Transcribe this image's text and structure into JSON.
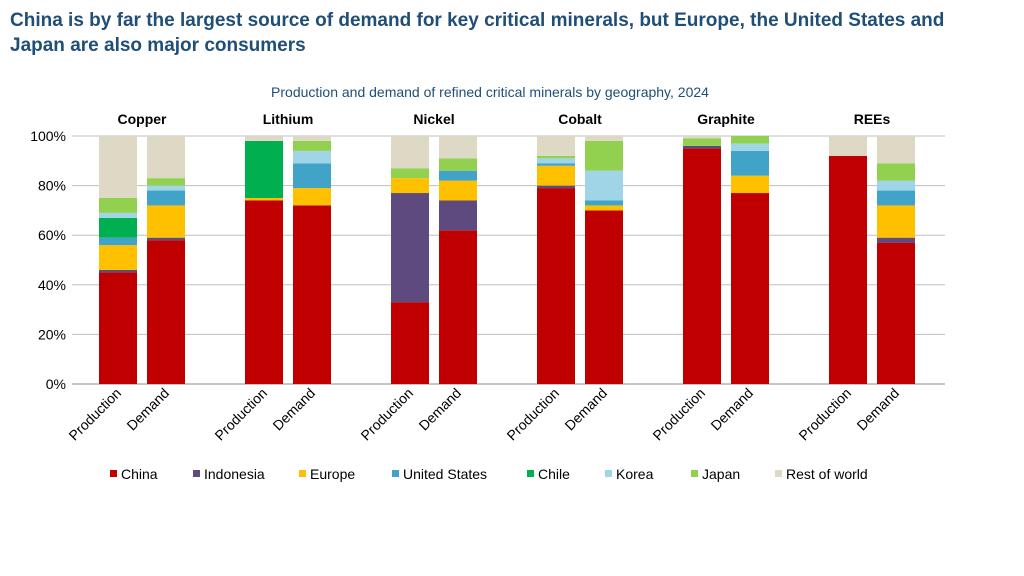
{
  "page": {
    "headline": "China is by far the largest source of demand for key critical minerals, but Europe, the United States and Japan are also major consumers"
  },
  "chart_data": {
    "type": "bar",
    "stacked": true,
    "title": "Production and demand of refined critical minerals by geography, 2024",
    "y_ticks": [
      "100%",
      "80%",
      "60%",
      "40%",
      "20%",
      "0%"
    ],
    "ylim": [
      0,
      100
    ],
    "grid": true,
    "legend_position": "bottom",
    "groups": [
      {
        "name": "Copper",
        "bars": [
          {
            "label": "Production",
            "values": [
              45,
              1,
              10,
              3,
              8,
              2,
              6,
              25
            ]
          },
          {
            "label": "Demand",
            "values": [
              58,
              1,
              13,
              6,
              0,
              2,
              3,
              17
            ]
          }
        ]
      },
      {
        "name": "Lithium",
        "bars": [
          {
            "label": "Production",
            "values": [
              74,
              0,
              1,
              0,
              23,
              0,
              0,
              2
            ]
          },
          {
            "label": "Demand",
            "values": [
              72,
              0,
              7,
              10,
              0,
              5,
              4,
              2
            ]
          }
        ]
      },
      {
        "name": "Nickel",
        "bars": [
          {
            "label": "Production",
            "values": [
              33,
              44,
              6,
              0,
              0,
              0,
              4,
              13
            ]
          },
          {
            "label": "Demand",
            "values": [
              62,
              12,
              8,
              4,
              0,
              0,
              5,
              9
            ]
          }
        ]
      },
      {
        "name": "Cobalt",
        "bars": [
          {
            "label": "Production",
            "values": [
              79,
              1,
              8,
              1,
              0,
              2,
              1,
              8
            ]
          },
          {
            "label": "Demand",
            "values": [
              70,
              0,
              2,
              2,
              0,
              12,
              12,
              2
            ]
          }
        ]
      },
      {
        "name": "Graphite",
        "bars": [
          {
            "label": "Production",
            "values": [
              95,
              1,
              0,
              0,
              0,
              0,
              3,
              1
            ]
          },
          {
            "label": "Demand",
            "values": [
              77,
              0,
              7,
              10,
              0,
              3,
              3,
              0
            ]
          }
        ]
      },
      {
        "name": "REEs",
        "bars": [
          {
            "label": "Production",
            "values": [
              92,
              0,
              0,
              0,
              0,
              0,
              0,
              8
            ]
          },
          {
            "label": "Demand",
            "values": [
              57,
              2,
              13,
              6,
              0,
              4,
              7,
              11
            ]
          }
        ]
      }
    ],
    "series": [
      {
        "name": "China",
        "color": "#c00000"
      },
      {
        "name": "Indonesia",
        "color": "#5e4a7e"
      },
      {
        "name": "Europe",
        "color": "#ffc000"
      },
      {
        "name": "United States",
        "color": "#41a3c7"
      },
      {
        "name": "Chile",
        "color": "#00b050"
      },
      {
        "name": "Korea",
        "color": "#9fd5e6"
      },
      {
        "name": "Japan",
        "color": "#92d050"
      },
      {
        "name": "Rest of world",
        "color": "#ddd9c4"
      }
    ]
  }
}
